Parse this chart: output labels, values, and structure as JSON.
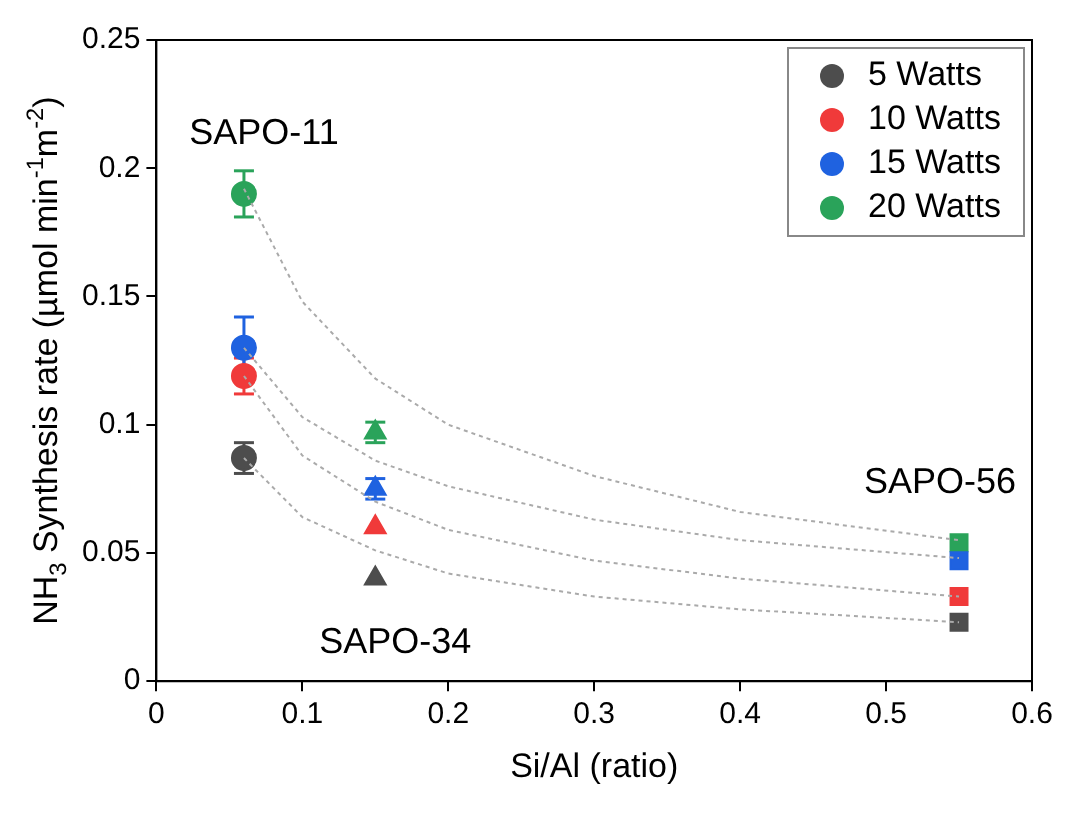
{
  "chart_data": {
    "type": "scatter",
    "xlabel": "Si/Al (ratio)",
    "ylabel": "NH$_{3}$ Synthesis rate (µmol min$^{-1}$m$^{-2}$)",
    "xlim": [
      0,
      0.6
    ],
    "xticks": [
      0,
      0.1,
      0.2,
      0.3,
      0.4,
      0.5,
      0.6
    ],
    "ylim": [
      0,
      0.25
    ],
    "yticks": [
      0,
      0.05,
      0.1,
      0.15,
      0.2,
      0.25
    ],
    "legend": "top right",
    "annotations": [
      {
        "text": "SAPO-11",
        "x": 0.06,
        "y": 0.19
      },
      {
        "text": "SAPO-34",
        "x": 0.15,
        "y": 0.04
      },
      {
        "text": "SAPO-56",
        "x": 0.55,
        "y": 0.054
      }
    ],
    "series": [
      {
        "type": "line",
        "color": "#aaaaaa",
        "line_style": "dotted",
        "marker": "none",
        "x": [
          0.06,
          0.1,
          0.15,
          0.2,
          0.3,
          0.4,
          0.55
        ],
        "values": [
          0.192,
          0.148,
          0.118,
          0.1,
          0.08,
          0.066,
          0.055
        ]
      },
      {
        "type": "line",
        "color": "#aaaaaa",
        "line_style": "dotted",
        "marker": "none",
        "x": [
          0.06,
          0.1,
          0.15,
          0.2,
          0.3,
          0.4,
          0.55
        ],
        "values": [
          0.13,
          0.103,
          0.086,
          0.076,
          0.063,
          0.055,
          0.048
        ]
      },
      {
        "type": "line",
        "color": "#aaaaaa",
        "line_style": "dotted",
        "marker": "none",
        "x": [
          0.06,
          0.1,
          0.15,
          0.2,
          0.3,
          0.4,
          0.55
        ],
        "values": [
          0.119,
          0.088,
          0.07,
          0.059,
          0.047,
          0.04,
          0.033
        ]
      },
      {
        "type": "line",
        "color": "#aaaaaa",
        "line_style": "dotted",
        "marker": "none",
        "x": [
          0.06,
          0.1,
          0.15,
          0.2,
          0.3,
          0.4,
          0.55
        ],
        "values": [
          0.087,
          0.064,
          0.051,
          0.042,
          0.033,
          0.028,
          0.023
        ]
      },
      {
        "name": "5 Watts",
        "color": "#4d4d4d",
        "marker": [
          "circle",
          "triangle",
          "square"
        ],
        "x": [
          0.06,
          0.15,
          0.55
        ],
        "values": [
          0.087,
          0.04,
          0.023
        ],
        "errors": [
          0.006,
          null,
          null
        ]
      },
      {
        "name": "10 Watts",
        "color": "#f03a3a",
        "marker": [
          "circle",
          "triangle",
          "square"
        ],
        "x": [
          0.06,
          0.15,
          0.55
        ],
        "values": [
          0.119,
          0.06,
          0.033
        ],
        "errors": [
          0.007,
          null,
          null
        ]
      },
      {
        "name": "15 Watts",
        "color": "#1f62e0",
        "marker": [
          "circle",
          "triangle",
          "square"
        ],
        "x": [
          0.06,
          0.15,
          0.55
        ],
        "values": [
          0.13,
          0.075,
          0.047
        ],
        "errors": [
          0.012,
          0.004,
          null
        ]
      },
      {
        "name": "20 Watts",
        "color": "#2aa35a",
        "marker": [
          "circle",
          "triangle",
          "square"
        ],
        "x": [
          0.06,
          0.15,
          0.55
        ],
        "values": [
          0.19,
          0.097,
          0.054
        ],
        "errors": [
          0.009,
          0.004,
          null
        ]
      }
    ]
  }
}
